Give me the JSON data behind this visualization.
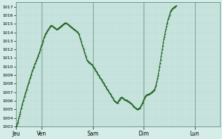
{
  "background_color": "#d4ede8",
  "plot_bg_color": "#d4ede8",
  "grid_color_minor": "#b8d8d0",
  "grid_color_major": "#80a898",
  "line_color": "#1a5e1a",
  "marker_color": "#1a5e1a",
  "ylim": [
    1003,
    1017.5
  ],
  "yticks": [
    1003,
    1004,
    1005,
    1006,
    1007,
    1008,
    1009,
    1010,
    1011,
    1012,
    1013,
    1014,
    1015,
    1016,
    1017
  ],
  "day_labels": [
    "Jeu",
    "Ven",
    "Sam",
    "Dim",
    "Lun"
  ],
  "day_tick_positions": [
    0,
    48,
    144,
    240,
    336
  ],
  "vline_positions": [
    48,
    144,
    240,
    336
  ],
  "total_points": 384,
  "data": [
    1003.0,
    1003.1,
    1003.3,
    1003.5,
    1003.7,
    1004.0,
    1004.2,
    1004.5,
    1004.7,
    1005.0,
    1005.2,
    1005.5,
    1005.7,
    1005.9,
    1006.1,
    1006.4,
    1006.6,
    1006.8,
    1007.0,
    1007.2,
    1007.4,
    1007.6,
    1007.8,
    1008.0,
    1008.2,
    1008.4,
    1008.6,
    1008.8,
    1009.0,
    1009.2,
    1009.4,
    1009.6,
    1009.8,
    1009.9,
    1010.1,
    1010.3,
    1010.4,
    1010.6,
    1010.7,
    1010.9,
    1011.0,
    1011.2,
    1011.4,
    1011.5,
    1011.7,
    1011.9,
    1012.1,
    1012.3,
    1012.5,
    1012.7,
    1012.9,
    1013.1,
    1013.3,
    1013.5,
    1013.6,
    1013.8,
    1013.9,
    1014.0,
    1014.1,
    1014.2,
    1014.3,
    1014.4,
    1014.5,
    1014.6,
    1014.7,
    1014.75,
    1014.8,
    1014.8,
    1014.75,
    1014.7,
    1014.65,
    1014.6,
    1014.55,
    1014.5,
    1014.45,
    1014.4,
    1014.4,
    1014.35,
    1014.4,
    1014.45,
    1014.5,
    1014.55,
    1014.6,
    1014.65,
    1014.7,
    1014.75,
    1014.8,
    1014.85,
    1014.9,
    1014.95,
    1015.0,
    1015.05,
    1015.1,
    1015.1,
    1015.1,
    1015.05,
    1015.0,
    1014.95,
    1014.9,
    1014.85,
    1014.8,
    1014.75,
    1014.7,
    1014.65,
    1014.6,
    1014.55,
    1014.5,
    1014.45,
    1014.4,
    1014.35,
    1014.3,
    1014.25,
    1014.2,
    1014.15,
    1014.1,
    1014.05,
    1014.0,
    1013.9,
    1013.8,
    1013.6,
    1013.4,
    1013.2,
    1013.0,
    1012.8,
    1012.6,
    1012.4,
    1012.2,
    1012.0,
    1011.8,
    1011.6,
    1011.4,
    1011.2,
    1011.0,
    1010.8,
    1010.7,
    1010.6,
    1010.55,
    1010.5,
    1010.45,
    1010.4,
    1010.35,
    1010.3,
    1010.25,
    1010.2,
    1010.1,
    1010.0,
    1009.9,
    1009.8,
    1009.7,
    1009.6,
    1009.5,
    1009.4,
    1009.3,
    1009.2,
    1009.1,
    1009.0,
    1008.9,
    1008.8,
    1008.7,
    1008.6,
    1008.5,
    1008.4,
    1008.3,
    1008.2,
    1008.1,
    1008.0,
    1007.9,
    1007.8,
    1007.7,
    1007.6,
    1007.5,
    1007.4,
    1007.3,
    1007.2,
    1007.1,
    1007.0,
    1006.9,
    1006.8,
    1006.7,
    1006.6,
    1006.5,
    1006.4,
    1006.3,
    1006.2,
    1006.1,
    1006.0,
    1005.9,
    1005.9,
    1005.85,
    1005.8,
    1005.75,
    1005.8,
    1005.9,
    1006.0,
    1006.1,
    1006.2,
    1006.3,
    1006.35,
    1006.4,
    1006.4,
    1006.35,
    1006.3,
    1006.25,
    1006.2,
    1006.15,
    1006.1,
    1006.1,
    1006.1,
    1006.05,
    1006.0,
    1005.95,
    1005.9,
    1005.9,
    1005.85,
    1005.8,
    1005.75,
    1005.7,
    1005.65,
    1005.6,
    1005.5,
    1005.4,
    1005.35,
    1005.3,
    1005.25,
    1005.2,
    1005.15,
    1005.1,
    1005.05,
    1005.0,
    1005.0,
    1005.05,
    1005.1,
    1005.15,
    1005.2,
    1005.3,
    1005.4,
    1005.5,
    1005.65,
    1005.8,
    1005.95,
    1006.1,
    1006.25,
    1006.4,
    1006.5,
    1006.6,
    1006.65,
    1006.7,
    1006.72,
    1006.74,
    1006.76,
    1006.78,
    1006.8,
    1006.85,
    1006.9,
    1006.95,
    1007.0,
    1007.05,
    1007.1,
    1007.15,
    1007.2,
    1007.3,
    1007.4,
    1007.6,
    1007.8,
    1008.0,
    1008.3,
    1008.6,
    1008.9,
    1009.2,
    1009.6,
    1010.0,
    1010.4,
    1010.8,
    1011.2,
    1011.6,
    1012.0,
    1012.4,
    1012.8,
    1013.2,
    1013.5,
    1013.8,
    1014.1,
    1014.4,
    1014.7,
    1015.0,
    1015.2,
    1015.5,
    1015.7,
    1015.9,
    1016.1,
    1016.3,
    1016.5,
    1016.6,
    1016.7,
    1016.75,
    1016.8,
    1016.85,
    1016.9,
    1016.95,
    1017.0,
    1017.05,
    1017.1
  ]
}
